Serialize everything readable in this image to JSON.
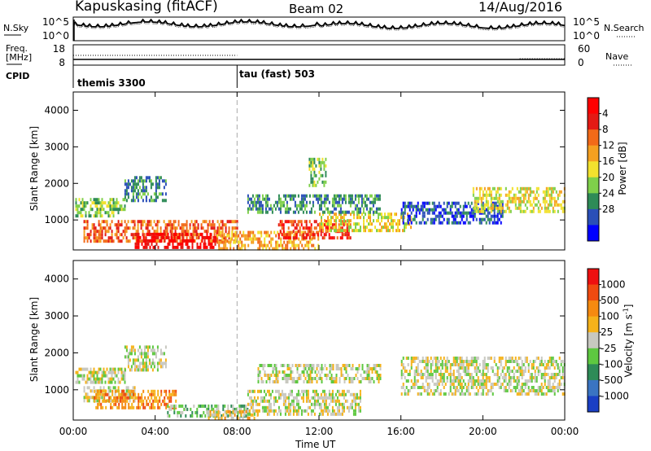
{
  "header": {
    "station": "Kapuskasing (fitACF)",
    "beam": "Beam 02",
    "date": "14/Aug/2016"
  },
  "status_panels": {
    "nsky_label": "N.Sky",
    "nsearch_label": "N.Search",
    "freq_label_line1": "Freq.",
    "freq_label_line2": "[MHz]",
    "nave_label": "Nave",
    "cpid_label": "CPID",
    "noise_ticks_left": [
      "10^5",
      "10^0"
    ],
    "noise_ticks_right": [
      "10^5",
      "10^0"
    ],
    "freq_ticks": [
      "18",
      "8"
    ],
    "nave_ticks": [
      "60",
      "0"
    ],
    "cpid_programs": [
      {
        "name": "themis 3300",
        "start_hour": 0
      },
      {
        "name": "tau (fast) 503",
        "start_hour": 8
      }
    ]
  },
  "chart_data": [
    {
      "type": "heatmap",
      "title": "",
      "xlabel": "Time UT",
      "ylabel": "Slant Range [km]",
      "xlim_hours": [
        0,
        24
      ],
      "ylim": [
        180,
        4500
      ],
      "x_ticks": [
        "00:00",
        "04:00",
        "08:00",
        "12:00",
        "16:00",
        "20:00",
        "00:00"
      ],
      "y_ticks": [
        1000,
        2000,
        3000,
        4000
      ],
      "colorbar": {
        "label": "Power [dB]",
        "ticks": [
          "4",
          "8",
          "12",
          "16",
          "20",
          "24",
          "28"
        ],
        "colors": [
          "#0000ff",
          "#2a4fb8",
          "#2e8b57",
          "#7fd04a",
          "#f2e12e",
          "#f5a020",
          "#f26a18",
          "#e41a14",
          "#ff0000"
        ]
      },
      "echo_regions": [
        {
          "t0": 0.1,
          "t1": 2.5,
          "r0": 1150,
          "r1": 1600,
          "level": 3
        },
        {
          "t0": 2.5,
          "t1": 4.5,
          "r0": 1500,
          "r1": 2200,
          "level": 2
        },
        {
          "t0": 0.5,
          "t1": 8,
          "r0": 400,
          "r1": 1000,
          "level": 6
        },
        {
          "t0": 3,
          "t1": 7,
          "r0": 250,
          "r1": 650,
          "level": 8
        },
        {
          "t0": 7,
          "t1": 12,
          "r0": 250,
          "r1": 700,
          "level": 5
        },
        {
          "t0": 10,
          "t1": 13.5,
          "r0": 500,
          "r1": 1000,
          "level": 7
        },
        {
          "t0": 12,
          "t1": 16.5,
          "r0": 700,
          "r1": 1200,
          "level": 4
        },
        {
          "t0": 8.5,
          "t1": 15,
          "r0": 1200,
          "r1": 1700,
          "level": 2
        },
        {
          "t0": 16,
          "t1": 21,
          "r0": 900,
          "r1": 1500,
          "level": 1
        },
        {
          "t0": 19.5,
          "t1": 24,
          "r0": 1250,
          "r1": 1900,
          "level": 4
        },
        {
          "t0": 11.5,
          "t1": 12.3,
          "r0": 1900,
          "r1": 2700,
          "level": 3
        }
      ]
    },
    {
      "type": "heatmap",
      "title": "",
      "xlabel": "Time UT",
      "ylabel": "Slant Range [km]",
      "xlim_hours": [
        0,
        24
      ],
      "ylim": [
        180,
        4500
      ],
      "x_ticks": [
        "00:00",
        "04:00",
        "08:00",
        "12:00",
        "16:00",
        "20:00",
        "00:00"
      ],
      "y_ticks": [
        1000,
        2000,
        3000,
        4000
      ],
      "colorbar": {
        "label": "Velocity [m s^-1]",
        "ticks": [
          "1000",
          "500",
          "100",
          "25",
          "-25",
          "-100",
          "-500",
          "-1000"
        ],
        "colors": [
          "#1a3fc4",
          "#3a74c2",
          "#2e8b57",
          "#5ec840",
          "#c8c8c0",
          "#f5b21a",
          "#f58a10",
          "#f04a10",
          "#ee1010"
        ]
      },
      "echo_regions": [
        {
          "t0": 0.1,
          "t1": 2.5,
          "r0": 1200,
          "r1": 1600,
          "level": 4
        },
        {
          "t0": 2.5,
          "t1": 4.5,
          "r0": 1500,
          "r1": 2200,
          "level": 4
        },
        {
          "t0": 0.5,
          "t1": 3,
          "r0": 700,
          "r1": 1100,
          "level": 4
        },
        {
          "t0": 1,
          "t1": 5,
          "r0": 500,
          "r1": 1000,
          "level": 6
        },
        {
          "t0": 4.5,
          "t1": 8.5,
          "r0": 300,
          "r1": 600,
          "level": 3
        },
        {
          "t0": 6.5,
          "t1": 9,
          "r0": 200,
          "r1": 450,
          "level": 5
        },
        {
          "t0": 8.5,
          "t1": 14,
          "r0": 300,
          "r1": 1000,
          "level": 4
        },
        {
          "t0": 9,
          "t1": 15,
          "r0": 1200,
          "r1": 1700,
          "level": 4
        },
        {
          "t0": 16,
          "t1": 24,
          "r0": 900,
          "r1": 1900,
          "level": 4
        }
      ]
    }
  ],
  "axis_labels": {
    "xlabel": "Time UT",
    "ylabel": "Slant Range [km]",
    "power_label": "Power [dB]",
    "velocity_label": "Velocity [m s^-1]"
  }
}
